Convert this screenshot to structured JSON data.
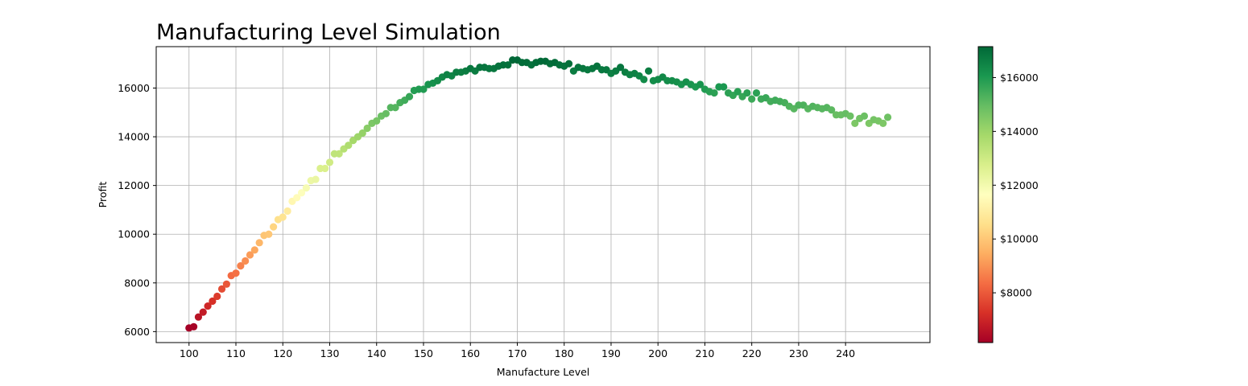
{
  "chart_data": {
    "type": "scatter",
    "title": "Manufacturing Level Simulation",
    "xlabel": "Manufacture Level",
    "ylabel": "Profit",
    "xlim": [
      93,
      258
    ],
    "ylim": [
      5550,
      17700
    ],
    "xticks": [
      100,
      110,
      120,
      130,
      140,
      150,
      160,
      170,
      180,
      190,
      200,
      210,
      220,
      230,
      240
    ],
    "yticks": [
      6000,
      8000,
      10000,
      12000,
      14000,
      16000
    ],
    "grid": true,
    "colormap": "RdYlGn",
    "color_by": "profit",
    "colorbar": {
      "min": 6150,
      "max": 17150,
      "ticks": [
        8000,
        10000,
        12000,
        14000,
        16000
      ],
      "tick_labels": [
        "$8000",
        "$10000",
        "$12000",
        "$14000",
        "$16000"
      ]
    },
    "x": [
      100,
      101,
      102,
      103,
      104,
      105,
      106,
      107,
      108,
      109,
      110,
      111,
      112,
      113,
      114,
      115,
      116,
      117,
      118,
      119,
      120,
      121,
      122,
      123,
      124,
      125,
      126,
      127,
      128,
      129,
      130,
      131,
      132,
      133,
      134,
      135,
      136,
      137,
      138,
      139,
      140,
      141,
      142,
      143,
      144,
      145,
      146,
      147,
      148,
      149,
      150,
      151,
      152,
      153,
      154,
      155,
      156,
      157,
      158,
      159,
      160,
      161,
      162,
      163,
      164,
      165,
      166,
      167,
      168,
      169,
      170,
      171,
      172,
      173,
      174,
      175,
      176,
      177,
      178,
      179,
      180,
      181,
      182,
      183,
      184,
      185,
      186,
      187,
      188,
      189,
      190,
      191,
      192,
      193,
      194,
      195,
      196,
      197,
      198,
      199,
      200,
      201,
      202,
      203,
      204,
      205,
      206,
      207,
      208,
      209,
      210,
      211,
      212,
      213,
      214,
      215,
      216,
      217,
      218,
      219,
      220,
      221,
      222,
      223,
      224,
      225,
      226,
      227,
      228,
      229,
      230,
      231,
      232,
      233,
      234,
      235,
      236,
      237,
      238,
      239,
      240,
      241,
      242,
      243,
      244,
      245,
      246,
      247,
      248,
      249
    ],
    "y": [
      6150,
      6200,
      6600,
      6800,
      7050,
      7250,
      7450,
      7750,
      7950,
      8300,
      8400,
      8700,
      8900,
      9150,
      9350,
      9650,
      9950,
      10000,
      10300,
      10600,
      10700,
      10950,
      11350,
      11500,
      11700,
      11900,
      12200,
      12250,
      12700,
      12700,
      12950,
      13300,
      13300,
      13500,
      13650,
      13850,
      14000,
      14150,
      14350,
      14550,
      14650,
      14850,
      14950,
      15200,
      15200,
      15400,
      15500,
      15650,
      15900,
      15950,
      15950,
      16150,
      16200,
      16300,
      16450,
      16550,
      16500,
      16650,
      16650,
      16700,
      16800,
      16700,
      16850,
      16850,
      16800,
      16800,
      16900,
      16950,
      16950,
      17150,
      17150,
      17050,
      17050,
      16950,
      17050,
      17100,
      17100,
      17000,
      17050,
      16950,
      16900,
      17000,
      16700,
      16850,
      16800,
      16750,
      16800,
      16900,
      16750,
      16750,
      16600,
      16700,
      16850,
      16650,
      16550,
      16600,
      16500,
      16350,
      16700,
      16300,
      16350,
      16450,
      16300,
      16300,
      16250,
      16150,
      16250,
      16150,
      16050,
      16150,
      15950,
      15850,
      15800,
      16050,
      16050,
      15800,
      15700,
      15850,
      15650,
      15800,
      15550,
      15800,
      15550,
      15600,
      15450,
      15500,
      15450,
      15400,
      15250,
      15150,
      15300,
      15300,
      15150,
      15250,
      15200,
      15150,
      15200,
      15100,
      14900,
      14900,
      14950,
      14850,
      14550,
      14750,
      14850,
      14550,
      14700,
      14650,
      14550,
      14800
    ]
  }
}
